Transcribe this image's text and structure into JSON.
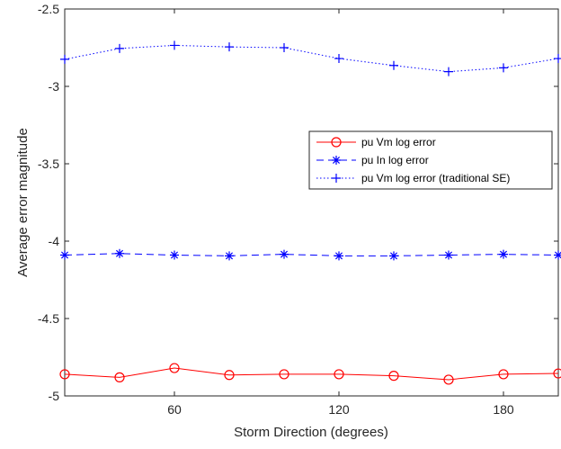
{
  "chart_data": {
    "type": "line",
    "xlabel": "Storm Direction (degrees)",
    "ylabel": "Average error magnitude",
    "xlim": [
      20,
      200
    ],
    "ylim": [
      -5,
      -2.5
    ],
    "xticks": [
      60,
      120,
      180
    ],
    "xtick_labels": [
      "60",
      "120",
      "180"
    ],
    "yticks": [
      -5,
      -4.5,
      -4,
      -3.5,
      -3,
      -2.5
    ],
    "ytick_labels": [
      "-5",
      "-4.5",
      "-4",
      "-3.5",
      "-3",
      "-2.5"
    ],
    "grid": false,
    "legend_position": "right",
    "x": [
      20,
      40,
      60,
      80,
      100,
      120,
      140,
      160,
      180,
      200
    ],
    "series": [
      {
        "name": "pu Vm log error",
        "color": "#ff0000",
        "line_style": "solid",
        "marker": "circle",
        "values": [
          -4.86,
          -4.88,
          -4.82,
          -4.865,
          -4.86,
          -4.86,
          -4.87,
          -4.895,
          -4.86,
          -4.855
        ]
      },
      {
        "name": "pu In log error",
        "color": "#0000ff",
        "line_style": "dashed",
        "marker": "asterisk",
        "values": [
          -4.09,
          -4.08,
          -4.09,
          -4.095,
          -4.085,
          -4.095,
          -4.095,
          -4.09,
          -4.085,
          -4.09
        ]
      },
      {
        "name": "pu Vm log error (traditional SE)",
        "color": "#0000ff",
        "line_style": "dotted",
        "marker": "plus",
        "values": [
          -2.825,
          -2.755,
          -2.735,
          -2.745,
          -2.75,
          -2.82,
          -2.865,
          -2.905,
          -2.88,
          -2.82
        ]
      }
    ]
  }
}
